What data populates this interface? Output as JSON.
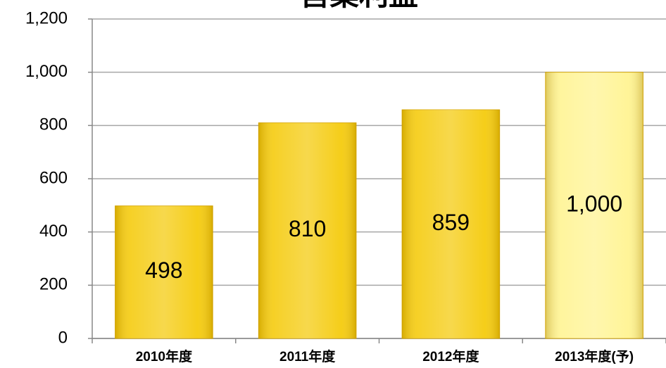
{
  "chart_data": {
    "type": "bar",
    "title": "営業利益",
    "categories": [
      "2010年度",
      "2011年度",
      "2012年度",
      "2013年度(予)"
    ],
    "values": [
      498,
      810,
      859,
      1000
    ],
    "value_labels": [
      "498",
      "810",
      "859",
      "1,000"
    ],
    "colors": [
      "#f4c800",
      "#f4c800",
      "#f4c800",
      "#fff38c"
    ],
    "ylim": [
      0,
      1200
    ],
    "yticks": [
      0,
      200,
      400,
      600,
      800,
      {
        "value": 1000,
        "label": "1,000"
      },
      {
        "value": 1200,
        "label": "1,200"
      }
    ],
    "grid": true
  }
}
